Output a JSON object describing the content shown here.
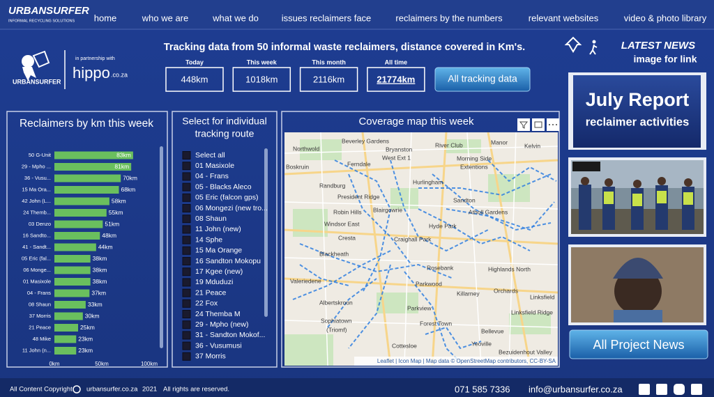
{
  "nav": {
    "logo": "URBANSURFER",
    "logo_tagline": "INFORMAL RECYCLING SOLUTIONS",
    "links": [
      "home",
      "who we are",
      "what we do",
      "issues reclaimers face",
      "reclaimers by the numbers",
      "relevant websites",
      "video & photo library"
    ]
  },
  "header": {
    "logo": "URBANSURFER",
    "partner_intro": "in partnership with",
    "partner": "hippo",
    "partner_domain": ".co.za",
    "tracking_title": "Tracking data from 50 informal waste reclaimers, distance covered in Km's.",
    "stats": [
      {
        "label": "Today",
        "value": "448km"
      },
      {
        "label": "This week",
        "value": "1018km"
      },
      {
        "label": "This month",
        "value": "2116km"
      },
      {
        "label": "All time",
        "value": "21774km"
      }
    ],
    "button": "All tracking data"
  },
  "chart_data": {
    "type": "bar",
    "orientation": "horizontal",
    "title": "Reclaimers by km this week",
    "categories": [
      "50 G-Unit",
      "29 - Mpho ...",
      "36 - Vusu...",
      "15 Ma Ora...",
      "42 John (L...",
      "24 Themb...",
      "03 Denzo",
      "16 Sandto...",
      "41 - Sandt...",
      "05 Eric (fal...",
      "06 Monge...",
      "01 Masixole",
      "04 - Frans",
      "08 Shaun",
      "37 Morris",
      "21 Peace",
      "48 Mike",
      "11 John (n..."
    ],
    "values": [
      83,
      81,
      70,
      68,
      58,
      55,
      51,
      48,
      44,
      38,
      38,
      38,
      37,
      33,
      30,
      25,
      23,
      23
    ],
    "value_labels": [
      "83km",
      "81km",
      "70km",
      "68km",
      "58km",
      "55km",
      "51km",
      "48km",
      "44km",
      "38km",
      "38km",
      "38km",
      "37km",
      "33km",
      "30km",
      "25km",
      "23km",
      "23km"
    ],
    "color": "#6abf5e",
    "xlim": [
      0,
      100
    ],
    "xticks": [
      {
        "value": 0,
        "label": "0km"
      },
      {
        "value": 50,
        "label": "50km"
      },
      {
        "value": 100,
        "label": "100km"
      }
    ]
  },
  "slicer": {
    "title": [
      "Select for individual",
      "tracking route"
    ],
    "items": [
      "Select all",
      "01 Masixole",
      "04 - Frans",
      "05 - Blacks Aleco",
      "05 Eric (falcon gps)",
      "06 Mongezi (new tro...",
      "08 Shaun",
      "11 John (new)",
      "14 Sphe",
      "15 Ma Orange",
      "16 Sandton Mokopu",
      "17 Kgee (new)",
      "19 Mduduzi",
      "21 Peace",
      "22 Fox",
      "24 Themba M",
      "29 - Mpho (new)",
      "31 - Sandton Mokof...",
      "36 - Vusumusi",
      "37 Morris"
    ]
  },
  "map": {
    "title": "Coverage map this week",
    "places": [
      "Northwold",
      "Beverley Gardens",
      "Bryanston",
      "West Ext 1",
      "River Club",
      "Manor",
      "Kelvin",
      "Boskruin",
      "Ferndale",
      "Morning Side",
      "Extentions",
      "Randburg",
      "President Ridge",
      "Hurlingham",
      "Sandton",
      "Robin Hills",
      "Blairgowrie",
      "Atholl Gardens",
      "Windsor East",
      "Hyde Park",
      "Cresta",
      "Craighall Park",
      "Blackheath",
      "Rosebank",
      "Highlands North",
      "Valeriedene",
      "Parkwood",
      "Orchards",
      "Linksfield",
      "Albertskroon",
      "Parkview",
      "Killarney",
      "Linksfield Ridge",
      "Forest Town",
      "Sophiatown",
      "(Triomf)",
      "Bellevue",
      "Yeoville",
      "Cottesloe",
      "Bezuidenhout Valley"
    ],
    "attribution": "Leaflet | Icon Map | Map data © OpenStreetMap contributors, CC-BY-SA"
  },
  "news": {
    "heading": "LATEST NEWS",
    "subheading": "image for link",
    "report_title": "July Report",
    "report_subtitle": "reclaimer activities",
    "button": "All Project News"
  },
  "footer": {
    "copyright": "All Content Copyright",
    "site": "urbansurfer.co.za",
    "year": "2021",
    "rights": "All rights are reserved.",
    "phone": "071 585 7336",
    "email": "info@urbansurfer.co.za"
  }
}
